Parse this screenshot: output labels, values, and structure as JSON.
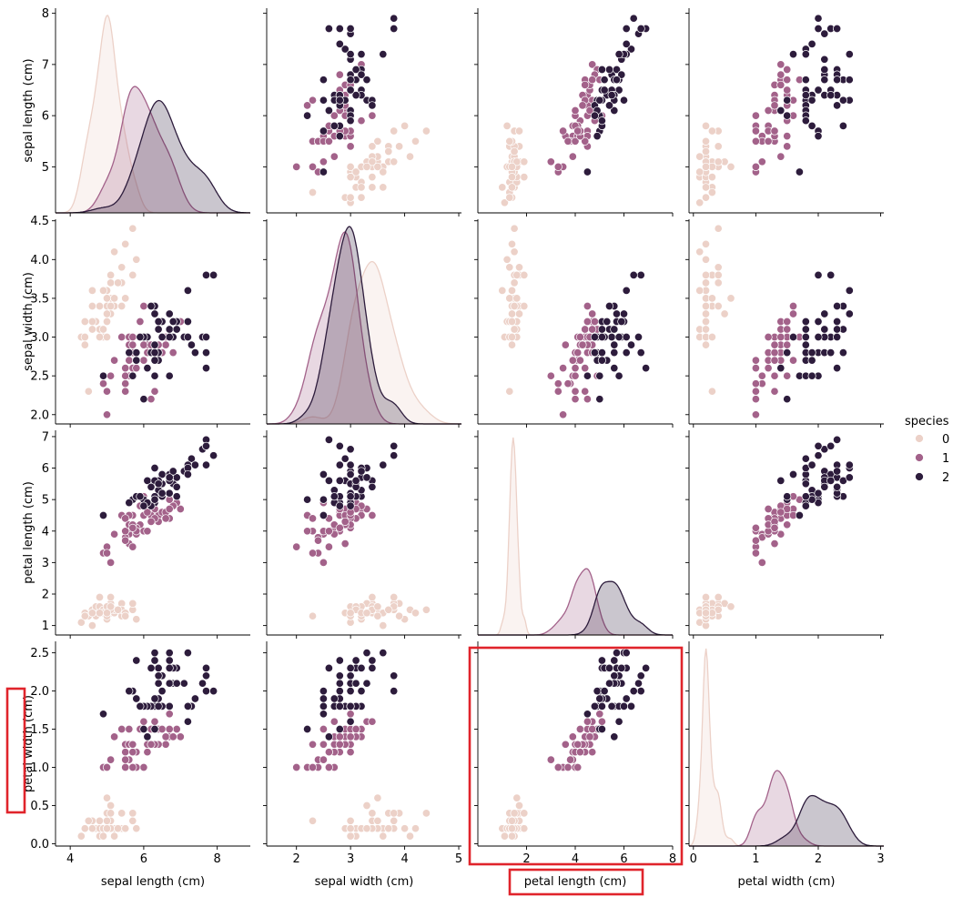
{
  "chart_data": {
    "type": "scatter",
    "kind": "pairplot",
    "variables": [
      "sepal length (cm)",
      "sepal width (cm)",
      "petal length (cm)",
      "petal width (cm)"
    ],
    "hue": "species",
    "legend": {
      "title": "species",
      "placement": "right",
      "entries": [
        "0",
        "1",
        "2"
      ]
    },
    "colors": {
      "0": "#ecd1c8",
      "1": "#a3628a",
      "2": "#2d1c3c"
    },
    "axes": {
      "sepal length (cm)": {
        "xlim": [
          3.6,
          8.9
        ],
        "xticks": [
          4,
          6,
          8
        ],
        "ylim": [
          4.1,
          8.1
        ],
        "yticks": [
          5,
          6,
          7,
          8
        ]
      },
      "sepal width (cm)": {
        "xlim": [
          1.45,
          5.05
        ],
        "xticks": [
          2,
          3,
          4,
          5
        ],
        "ylim": [
          1.88,
          4.52
        ],
        "yticks": [
          2.0,
          2.5,
          3.0,
          3.5,
          4.0,
          4.5
        ],
        "yticklabels": [
          "2.0",
          "2.5",
          "3.0",
          "3.5",
          "4.0",
          "4.5"
        ]
      },
      "petal length (cm)": {
        "xlim": [
          0.0,
          8.0
        ],
        "xticks": [
          2,
          4,
          6,
          8
        ],
        "ylim": [
          0.7,
          7.2
        ],
        "yticks": [
          1,
          2,
          3,
          4,
          5,
          6,
          7
        ]
      },
      "petal width (cm)": {
        "xlim": [
          -0.07,
          3.05
        ],
        "xticks": [
          0,
          1,
          2,
          3
        ],
        "ylim": [
          -0.03,
          2.65
        ],
        "yticks": [
          0.0,
          0.5,
          1.0,
          1.5,
          2.0,
          2.5
        ],
        "yticklabels": [
          "0.0",
          "0.5",
          "1.0",
          "1.5",
          "2.0",
          "2.5"
        ]
      }
    },
    "highlights": [
      "bottom-left y-axis label 'petal width (cm)'",
      "petal length vs petal width panel",
      "x-axis label 'petal length (cm)'"
    ],
    "highlight_color": "#e0242b",
    "series": [
      {
        "name": "0",
        "sepal_length": [
          5.1,
          4.9,
          4.7,
          4.6,
          5.0,
          5.4,
          4.6,
          5.0,
          4.4,
          4.9,
          5.4,
          4.8,
          4.8,
          4.3,
          5.8,
          5.7,
          5.4,
          5.1,
          5.7,
          5.1,
          5.4,
          5.1,
          4.6,
          5.1,
          4.8,
          5.0,
          5.0,
          5.2,
          5.2,
          4.7,
          4.8,
          5.4,
          5.2,
          5.5,
          4.9,
          5.0,
          5.5,
          4.9,
          4.4,
          5.1,
          5.0,
          4.5,
          4.4,
          5.0,
          5.1,
          4.8,
          5.1,
          4.6,
          5.3,
          5.0
        ],
        "sepal_width": [
          3.5,
          3.0,
          3.2,
          3.1,
          3.6,
          3.9,
          3.4,
          3.4,
          2.9,
          3.1,
          3.7,
          3.4,
          3.0,
          3.0,
          4.0,
          4.4,
          3.9,
          3.5,
          3.8,
          3.8,
          3.4,
          3.7,
          3.6,
          3.3,
          3.4,
          3.0,
          3.4,
          3.5,
          3.4,
          3.2,
          3.1,
          3.4,
          4.1,
          4.2,
          3.1,
          3.2,
          3.5,
          3.6,
          3.0,
          3.4,
          3.5,
          2.3,
          3.2,
          3.5,
          3.8,
          3.0,
          3.8,
          3.2,
          3.7,
          3.3
        ],
        "petal_length": [
          1.4,
          1.4,
          1.3,
          1.5,
          1.4,
          1.7,
          1.4,
          1.5,
          1.4,
          1.5,
          1.5,
          1.6,
          1.4,
          1.1,
          1.2,
          1.5,
          1.3,
          1.4,
          1.7,
          1.5,
          1.7,
          1.5,
          1.0,
          1.7,
          1.9,
          1.6,
          1.6,
          1.5,
          1.4,
          1.6,
          1.6,
          1.5,
          1.5,
          1.4,
          1.5,
          1.2,
          1.3,
          1.4,
          1.3,
          1.5,
          1.3,
          1.3,
          1.3,
          1.6,
          1.9,
          1.4,
          1.6,
          1.4,
          1.5,
          1.4
        ],
        "petal_width": [
          0.2,
          0.2,
          0.2,
          0.2,
          0.2,
          0.4,
          0.3,
          0.2,
          0.2,
          0.1,
          0.2,
          0.2,
          0.1,
          0.1,
          0.2,
          0.4,
          0.4,
          0.3,
          0.3,
          0.3,
          0.2,
          0.4,
          0.2,
          0.5,
          0.2,
          0.2,
          0.4,
          0.2,
          0.2,
          0.2,
          0.2,
          0.4,
          0.1,
          0.2,
          0.2,
          0.2,
          0.2,
          0.1,
          0.2,
          0.2,
          0.3,
          0.3,
          0.2,
          0.6,
          0.4,
          0.3,
          0.2,
          0.2,
          0.2,
          0.2
        ]
      },
      {
        "name": "1",
        "sepal_length": [
          7.0,
          6.4,
          6.9,
          5.5,
          6.5,
          5.7,
          6.3,
          4.9,
          6.6,
          5.2,
          5.0,
          5.9,
          6.0,
          6.1,
          5.6,
          6.7,
          5.6,
          5.8,
          6.2,
          5.6,
          5.9,
          6.1,
          6.3,
          6.1,
          6.4,
          6.6,
          6.8,
          6.7,
          6.0,
          5.7,
          5.5,
          5.5,
          5.8,
          6.0,
          5.4,
          6.0,
          6.7,
          6.3,
          5.6,
          5.5,
          5.5,
          6.1,
          5.8,
          5.0,
          5.6,
          5.7,
          5.7,
          6.2,
          5.1,
          5.7
        ],
        "sepal_width": [
          3.2,
          3.2,
          3.1,
          2.3,
          2.8,
          2.8,
          3.3,
          2.4,
          2.9,
          2.7,
          2.0,
          3.0,
          2.2,
          2.9,
          2.9,
          3.1,
          3.0,
          2.7,
          2.2,
          2.5,
          3.2,
          2.8,
          2.5,
          2.8,
          2.9,
          3.0,
          2.8,
          3.0,
          2.9,
          2.6,
          2.4,
          2.4,
          2.7,
          2.7,
          3.0,
          3.4,
          3.1,
          2.3,
          3.0,
          2.5,
          2.6,
          3.0,
          2.6,
          2.3,
          2.7,
          3.0,
          2.9,
          2.9,
          2.5,
          2.8
        ],
        "petal_length": [
          4.7,
          4.5,
          4.9,
          4.0,
          4.6,
          4.5,
          4.7,
          3.3,
          4.6,
          3.9,
          3.5,
          4.2,
          4.0,
          4.7,
          3.6,
          4.4,
          4.5,
          4.1,
          4.5,
          3.9,
          4.8,
          4.0,
          4.9,
          4.7,
          4.3,
          4.4,
          4.8,
          5.0,
          4.5,
          3.5,
          3.8,
          3.7,
          3.9,
          5.1,
          4.5,
          4.5,
          4.7,
          4.4,
          4.1,
          4.0,
          4.4,
          4.6,
          4.0,
          3.3,
          4.2,
          4.2,
          4.2,
          4.3,
          3.0,
          4.1
        ],
        "petal_width": [
          1.4,
          1.5,
          1.5,
          1.3,
          1.5,
          1.3,
          1.6,
          1.0,
          1.3,
          1.4,
          1.0,
          1.5,
          1.0,
          1.4,
          1.3,
          1.4,
          1.5,
          1.0,
          1.5,
          1.1,
          1.8,
          1.3,
          1.5,
          1.2,
          1.3,
          1.4,
          1.4,
          1.7,
          1.5,
          1.0,
          1.1,
          1.0,
          1.2,
          1.6,
          1.5,
          1.6,
          1.5,
          1.3,
          1.3,
          1.3,
          1.2,
          1.4,
          1.2,
          1.0,
          1.3,
          1.2,
          1.3,
          1.3,
          1.1,
          1.3
        ]
      },
      {
        "name": "2",
        "sepal_length": [
          6.3,
          5.8,
          7.1,
          6.3,
          6.5,
          7.6,
          4.9,
          7.3,
          6.7,
          7.2,
          6.5,
          6.4,
          6.8,
          5.7,
          5.8,
          6.4,
          6.5,
          7.7,
          7.7,
          6.0,
          6.9,
          5.6,
          7.7,
          6.3,
          6.7,
          7.2,
          6.2,
          6.1,
          6.4,
          7.2,
          7.4,
          7.9,
          6.4,
          6.3,
          6.1,
          7.7,
          6.3,
          6.4,
          6.0,
          6.9,
          6.7,
          6.9,
          5.8,
          6.8,
          6.7,
          6.7,
          6.3,
          6.5,
          6.2,
          5.9
        ],
        "sepal_width": [
          3.3,
          2.7,
          3.0,
          2.9,
          3.0,
          3.0,
          2.5,
          2.9,
          2.5,
          3.6,
          3.2,
          2.7,
          3.0,
          2.5,
          2.8,
          3.2,
          3.0,
          3.8,
          2.6,
          2.2,
          3.2,
          2.8,
          2.8,
          2.7,
          3.3,
          3.2,
          2.8,
          3.0,
          2.8,
          3.0,
          2.8,
          3.8,
          2.8,
          2.8,
          2.6,
          3.0,
          3.4,
          3.1,
          3.0,
          3.1,
          3.1,
          3.1,
          2.7,
          3.2,
          3.3,
          3.0,
          2.5,
          3.0,
          3.4,
          3.0
        ],
        "petal_length": [
          6.0,
          5.1,
          5.9,
          5.6,
          5.8,
          6.6,
          4.5,
          6.3,
          5.8,
          6.1,
          5.1,
          5.3,
          5.5,
          5.0,
          5.1,
          5.3,
          5.5,
          6.7,
          6.9,
          5.0,
          5.7,
          4.9,
          6.7,
          4.9,
          5.7,
          6.0,
          4.8,
          4.9,
          5.6,
          5.8,
          6.1,
          6.4,
          5.6,
          5.1,
          5.6,
          6.1,
          5.6,
          5.5,
          4.8,
          5.4,
          5.6,
          5.1,
          5.1,
          5.9,
          5.7,
          5.2,
          5.0,
          5.2,
          5.4,
          5.1
        ],
        "petal_width": [
          2.5,
          1.9,
          2.1,
          1.8,
          2.2,
          2.1,
          1.7,
          1.8,
          1.8,
          2.5,
          2.0,
          1.9,
          2.1,
          2.0,
          2.4,
          2.3,
          1.8,
          2.2,
          2.3,
          1.5,
          2.3,
          2.0,
          2.0,
          1.8,
          2.1,
          1.8,
          1.8,
          1.8,
          2.1,
          1.6,
          1.9,
          2.0,
          2.2,
          1.5,
          1.4,
          2.3,
          2.4,
          1.8,
          1.8,
          2.1,
          2.4,
          2.3,
          1.9,
          2.3,
          2.5,
          2.3,
          1.9,
          2.0,
          2.3,
          1.8
        ]
      }
    ]
  }
}
